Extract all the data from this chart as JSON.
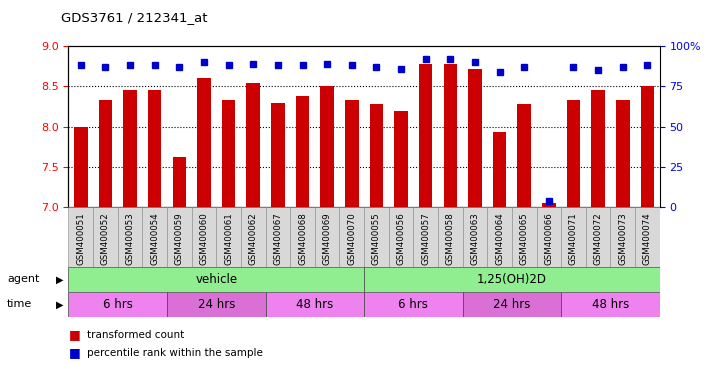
{
  "title": "GDS3761 / 212341_at",
  "samples": [
    "GSM400051",
    "GSM400052",
    "GSM400053",
    "GSM400054",
    "GSM400059",
    "GSM400060",
    "GSM400061",
    "GSM400062",
    "GSM400067",
    "GSM400068",
    "GSM400069",
    "GSM400070",
    "GSM400055",
    "GSM400056",
    "GSM400057",
    "GSM400058",
    "GSM400063",
    "GSM400064",
    "GSM400065",
    "GSM400066",
    "GSM400071",
    "GSM400072",
    "GSM400073",
    "GSM400074"
  ],
  "bar_values": [
    8.0,
    8.33,
    8.45,
    8.45,
    7.63,
    8.61,
    8.33,
    8.54,
    8.3,
    8.38,
    8.5,
    8.33,
    8.28,
    8.2,
    8.78,
    8.78,
    8.72,
    7.94,
    8.28,
    7.05,
    8.33,
    8.45,
    8.33,
    8.5
  ],
  "percentile_values": [
    88,
    87,
    88,
    88,
    87,
    90,
    88,
    89,
    88,
    88,
    89,
    88,
    87,
    86,
    92,
    92,
    90,
    84,
    87,
    4,
    87,
    85,
    87,
    88
  ],
  "ylim_left": [
    7.0,
    9.0
  ],
  "ylim_right": [
    0,
    100
  ],
  "yticks_left": [
    7.0,
    7.5,
    8.0,
    8.5,
    9.0
  ],
  "yticks_right": [
    0,
    25,
    50,
    75,
    100
  ],
  "bar_color": "#cc0000",
  "dot_color": "#0000cc",
  "bar_width": 0.55,
  "vehicle_color": "#90ee90",
  "d3_color": "#90ee90",
  "time_color_6": "#ee82ee",
  "time_color_24": "#da70d6",
  "time_color_48": "#ee82ee",
  "time_groups": [
    {
      "label": "6 hrs",
      "start": 0,
      "end": 4,
      "color": "#ee82ee"
    },
    {
      "label": "24 hrs",
      "start": 4,
      "end": 8,
      "color": "#da70d6"
    },
    {
      "label": "48 hrs",
      "start": 8,
      "end": 12,
      "color": "#ee82ee"
    },
    {
      "label": "6 hrs",
      "start": 12,
      "end": 16,
      "color": "#ee82ee"
    },
    {
      "label": "24 hrs",
      "start": 16,
      "end": 20,
      "color": "#da70d6"
    },
    {
      "label": "48 hrs",
      "start": 20,
      "end": 24,
      "color": "#ee82ee"
    }
  ]
}
